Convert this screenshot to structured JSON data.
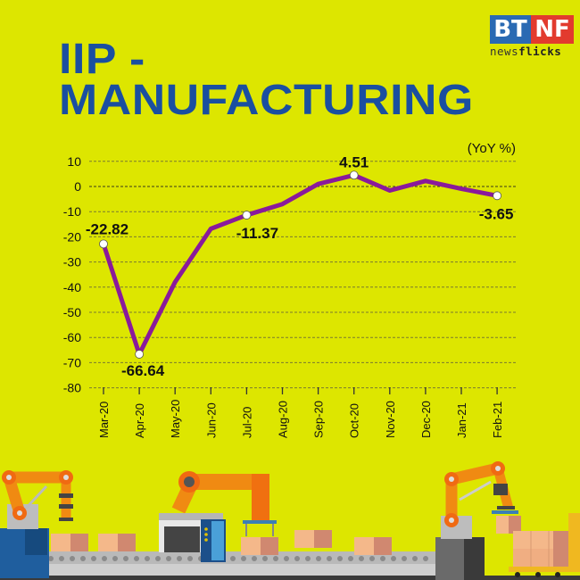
{
  "header": {
    "title_line1": "IIP -",
    "title_line2": "MANUFACTURING",
    "logo_left": "BT",
    "logo_right": "NF",
    "logo_sub_a": "news",
    "logo_sub_b": "flicks"
  },
  "colors": {
    "background": "#dde600",
    "title": "#1a4fa0",
    "line": "#8a1a9b",
    "marker_fill": "#ffffff",
    "grid": "#6b6b2a",
    "logo_blue": "#2a6ab3",
    "logo_red": "#e23b2e"
  },
  "chart_data": {
    "type": "line",
    "title": "IIP - MANUFACTURING",
    "unit_label": "(YoY %)",
    "xlabel": "",
    "ylabel": "YoY %",
    "categories": [
      "Mar-20",
      "Apr-20",
      "May-20",
      "Jun-20",
      "Jul-20",
      "Aug-20",
      "Sep-20",
      "Oct-20",
      "Nov-20",
      "Dec-20",
      "Jan-21",
      "Feb-21"
    ],
    "series": [
      {
        "name": "IIP Manufacturing YoY %",
        "values": [
          -22.82,
          -66.64,
          -38.0,
          -16.8,
          -11.37,
          -7.0,
          1.0,
          4.51,
          -1.6,
          2.2,
          -0.9,
          -3.65
        ]
      }
    ],
    "labeled_points": [
      {
        "category": "Mar-20",
        "label": "-22.82"
      },
      {
        "category": "Apr-20",
        "label": "-66.64"
      },
      {
        "category": "Jul-20",
        "label": "-11.37"
      },
      {
        "category": "Oct-20",
        "label": "4.51"
      },
      {
        "category": "Feb-21",
        "label": "-3.65"
      }
    ],
    "yticks": [
      10,
      0,
      -10,
      -20,
      -30,
      -40,
      -50,
      -60,
      -70,
      -80
    ],
    "ylim": [
      -80,
      10
    ],
    "grid": true,
    "grid_style": "dashed horizontal",
    "legend": "none"
  }
}
